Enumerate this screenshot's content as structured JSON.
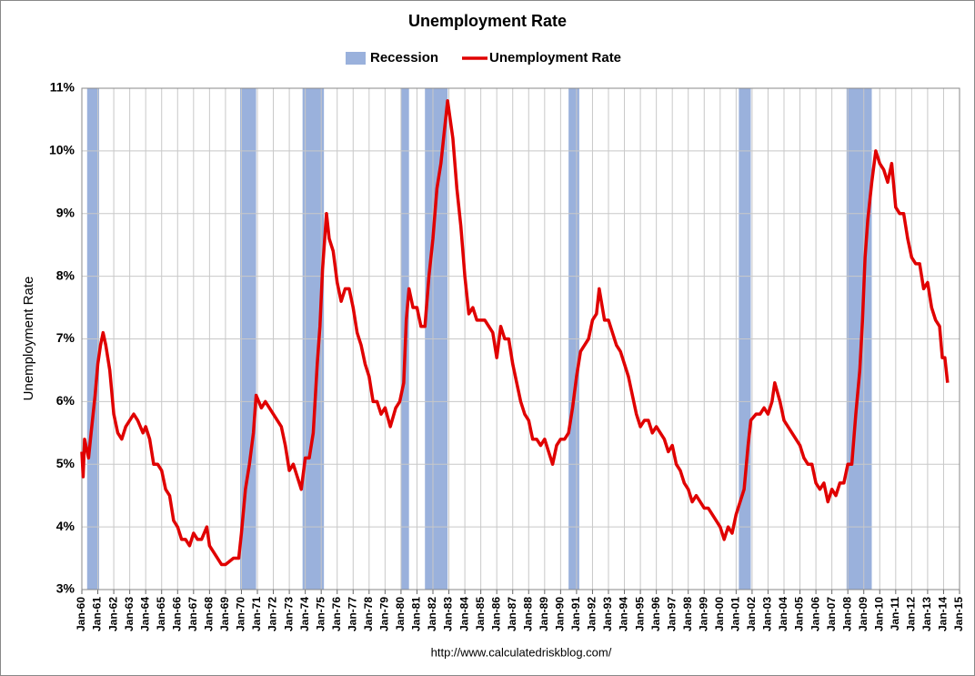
{
  "chart_data": {
    "type": "line",
    "title": "Unemployment Rate",
    "y_label": "Unemployment Rate",
    "source": "http://www.calculatedriskblog.com/",
    "xlim": [
      1960,
      2015
    ],
    "ylim": [
      3,
      11
    ],
    "yticks": [
      {
        "value": 3,
        "label": "3%"
      },
      {
        "value": 4,
        "label": "4%"
      },
      {
        "value": 5,
        "label": "5%"
      },
      {
        "value": 6,
        "label": "6%"
      },
      {
        "value": 7,
        "label": "7%"
      },
      {
        "value": 8,
        "label": "8%"
      },
      {
        "value": 9,
        "label": "9%"
      },
      {
        "value": 10,
        "label": "10%"
      },
      {
        "value": 11,
        "label": "11%"
      }
    ],
    "xticks": [
      {
        "value": 1960,
        "label": "Jan-60"
      },
      {
        "value": 1961,
        "label": "Jan-61"
      },
      {
        "value": 1962,
        "label": "Jan-62"
      },
      {
        "value": 1963,
        "label": "Jan-63"
      },
      {
        "value": 1964,
        "label": "Jan-64"
      },
      {
        "value": 1965,
        "label": "Jan-65"
      },
      {
        "value": 1966,
        "label": "Jan-66"
      },
      {
        "value": 1967,
        "label": "Jan-67"
      },
      {
        "value": 1968,
        "label": "Jan-68"
      },
      {
        "value": 1969,
        "label": "Jan-69"
      },
      {
        "value": 1970,
        "label": "Jan-70"
      },
      {
        "value": 1971,
        "label": "Jan-71"
      },
      {
        "value": 1972,
        "label": "Jan-72"
      },
      {
        "value": 1973,
        "label": "Jan-73"
      },
      {
        "value": 1974,
        "label": "Jan-74"
      },
      {
        "value": 1975,
        "label": "Jan-75"
      },
      {
        "value": 1976,
        "label": "Jan-76"
      },
      {
        "value": 1977,
        "label": "Jan-77"
      },
      {
        "value": 1978,
        "label": "Jan-78"
      },
      {
        "value": 1979,
        "label": "Jan-79"
      },
      {
        "value": 1980,
        "label": "Jan-80"
      },
      {
        "value": 1981,
        "label": "Jan-81"
      },
      {
        "value": 1982,
        "label": "Jan-82"
      },
      {
        "value": 1983,
        "label": "Jan-83"
      },
      {
        "value": 1984,
        "label": "Jan-84"
      },
      {
        "value": 1985,
        "label": "Jan-85"
      },
      {
        "value": 1986,
        "label": "Jan-86"
      },
      {
        "value": 1987,
        "label": "Jan-87"
      },
      {
        "value": 1988,
        "label": "Jan-88"
      },
      {
        "value": 1989,
        "label": "Jan-89"
      },
      {
        "value": 1990,
        "label": "Jan-90"
      },
      {
        "value": 1991,
        "label": "Jan-91"
      },
      {
        "value": 1992,
        "label": "Jan-92"
      },
      {
        "value": 1993,
        "label": "Jan-93"
      },
      {
        "value": 1994,
        "label": "Jan-94"
      },
      {
        "value": 1995,
        "label": "Jan-95"
      },
      {
        "value": 1996,
        "label": "Jan-96"
      },
      {
        "value": 1997,
        "label": "Jan-97"
      },
      {
        "value": 1998,
        "label": "Jan-98"
      },
      {
        "value": 1999,
        "label": "Jan-99"
      },
      {
        "value": 2000,
        "label": "Jan-00"
      },
      {
        "value": 2001,
        "label": "Jan-01"
      },
      {
        "value": 2002,
        "label": "Jan-02"
      },
      {
        "value": 2003,
        "label": "Jan-03"
      },
      {
        "value": 2004,
        "label": "Jan-04"
      },
      {
        "value": 2005,
        "label": "Jan-05"
      },
      {
        "value": 2006,
        "label": "Jan-06"
      },
      {
        "value": 2007,
        "label": "Jan-07"
      },
      {
        "value": 2008,
        "label": "Jan-08"
      },
      {
        "value": 2009,
        "label": "Jan-09"
      },
      {
        "value": 2010,
        "label": "Jan-10"
      },
      {
        "value": 2011,
        "label": "Jan-11"
      },
      {
        "value": 2012,
        "label": "Jan-12"
      },
      {
        "value": 2013,
        "label": "Jan-13"
      },
      {
        "value": 2014,
        "label": "Jan-14"
      },
      {
        "value": 2015,
        "label": "Jan-15"
      }
    ],
    "grid": true,
    "recessions": {
      "name": "Recession",
      "color": "#9ab1dc",
      "periods": [
        [
          1960.33,
          1961.08
        ],
        [
          1969.92,
          1970.92
        ],
        [
          1973.83,
          1975.17
        ],
        [
          1980.0,
          1980.5
        ],
        [
          1981.5,
          1982.92
        ],
        [
          1990.5,
          1991.17
        ],
        [
          2001.17,
          2001.92
        ],
        [
          2007.92,
          2009.5
        ]
      ]
    },
    "series": [
      {
        "name": "Unemployment Rate",
        "color": "#e00000",
        "x": [
          1960.0,
          1960.08,
          1960.17,
          1960.42,
          1960.58,
          1960.83,
          1961.0,
          1961.17,
          1961.33,
          1961.5,
          1961.75,
          1962.0,
          1962.25,
          1962.5,
          1962.75,
          1963.0,
          1963.25,
          1963.5,
          1963.83,
          1964.0,
          1964.25,
          1964.5,
          1964.75,
          1965.0,
          1965.25,
          1965.5,
          1965.75,
          1966.0,
          1966.25,
          1966.5,
          1966.75,
          1967.0,
          1967.25,
          1967.5,
          1967.83,
          1968.0,
          1968.25,
          1968.5,
          1968.75,
          1969.0,
          1969.5,
          1969.83,
          1970.0,
          1970.25,
          1970.5,
          1970.75,
          1970.92,
          1971.25,
          1971.5,
          1971.75,
          1972.0,
          1972.25,
          1972.5,
          1972.75,
          1973.0,
          1973.25,
          1973.5,
          1973.75,
          1974.0,
          1974.25,
          1974.5,
          1974.75,
          1974.92,
          1975.08,
          1975.33,
          1975.5,
          1975.75,
          1976.0,
          1976.25,
          1976.5,
          1976.75,
          1977.0,
          1977.25,
          1977.5,
          1977.75,
          1978.0,
          1978.25,
          1978.5,
          1978.75,
          1979.0,
          1979.33,
          1979.67,
          1979.92,
          1980.17,
          1980.33,
          1980.5,
          1980.75,
          1981.0,
          1981.25,
          1981.5,
          1981.75,
          1982.0,
          1982.25,
          1982.5,
          1982.75,
          1982.92,
          1983.25,
          1983.5,
          1983.75,
          1984.0,
          1984.25,
          1984.5,
          1984.75,
          1985.0,
          1985.25,
          1985.5,
          1985.75,
          1986.0,
          1986.25,
          1986.5,
          1986.75,
          1987.0,
          1987.25,
          1987.5,
          1987.75,
          1988.0,
          1988.25,
          1988.5,
          1988.75,
          1989.0,
          1989.25,
          1989.5,
          1989.75,
          1990.0,
          1990.25,
          1990.5,
          1990.75,
          1991.0,
          1991.25,
          1991.5,
          1991.75,
          1992.0,
          1992.25,
          1992.42,
          1992.75,
          1993.0,
          1993.25,
          1993.5,
          1993.75,
          1994.0,
          1994.25,
          1994.5,
          1994.75,
          1995.0,
          1995.25,
          1995.5,
          1995.75,
          1996.0,
          1996.25,
          1996.5,
          1996.75,
          1997.0,
          1997.25,
          1997.5,
          1997.75,
          1998.0,
          1998.25,
          1998.5,
          1998.75,
          1999.0,
          1999.25,
          1999.5,
          1999.75,
          2000.0,
          2000.25,
          2000.5,
          2000.75,
          2001.0,
          2001.25,
          2001.5,
          2001.75,
          2001.92,
          2002.25,
          2002.5,
          2002.75,
          2003.0,
          2003.25,
          2003.42,
          2003.75,
          2004.0,
          2004.25,
          2004.5,
          2004.75,
          2005.0,
          2005.25,
          2005.5,
          2005.75,
          2006.0,
          2006.25,
          2006.5,
          2006.75,
          2007.0,
          2007.25,
          2007.5,
          2007.75,
          2008.0,
          2008.25,
          2008.5,
          2008.75,
          2008.92,
          2009.08,
          2009.25,
          2009.5,
          2009.75,
          2010.0,
          2010.25,
          2010.5,
          2010.75,
          2011.0,
          2011.25,
          2011.5,
          2011.75,
          2012.0,
          2012.25,
          2012.5,
          2012.75,
          2013.0,
          2013.25,
          2013.5,
          2013.75,
          2013.92,
          2014.08,
          2014.25
        ],
        "values": [
          5.2,
          4.8,
          5.4,
          5.1,
          5.5,
          6.1,
          6.6,
          6.9,
          7.1,
          6.9,
          6.5,
          5.8,
          5.5,
          5.4,
          5.6,
          5.7,
          5.8,
          5.7,
          5.5,
          5.6,
          5.4,
          5.0,
          5.0,
          4.9,
          4.6,
          4.5,
          4.1,
          4.0,
          3.8,
          3.8,
          3.7,
          3.9,
          3.8,
          3.8,
          4.0,
          3.7,
          3.6,
          3.5,
          3.4,
          3.4,
          3.5,
          3.5,
          3.9,
          4.6,
          5.0,
          5.5,
          6.1,
          5.9,
          6.0,
          5.9,
          5.8,
          5.7,
          5.6,
          5.3,
          4.9,
          5.0,
          4.8,
          4.6,
          5.1,
          5.1,
          5.5,
          6.6,
          7.2,
          8.1,
          9.0,
          8.6,
          8.4,
          7.9,
          7.6,
          7.8,
          7.8,
          7.5,
          7.1,
          6.9,
          6.6,
          6.4,
          6.0,
          6.0,
          5.8,
          5.9,
          5.6,
          5.9,
          6.0,
          6.3,
          7.3,
          7.8,
          7.5,
          7.5,
          7.2,
          7.2,
          8.0,
          8.6,
          9.4,
          9.8,
          10.4,
          10.8,
          10.2,
          9.4,
          8.8,
          8.0,
          7.4,
          7.5,
          7.3,
          7.3,
          7.3,
          7.2,
          7.1,
          6.7,
          7.2,
          7.0,
          7.0,
          6.6,
          6.3,
          6.0,
          5.8,
          5.7,
          5.4,
          5.4,
          5.3,
          5.4,
          5.2,
          5.0,
          5.3,
          5.4,
          5.4,
          5.5,
          5.9,
          6.4,
          6.8,
          6.9,
          7.0,
          7.3,
          7.4,
          7.8,
          7.3,
          7.3,
          7.1,
          6.9,
          6.8,
          6.6,
          6.4,
          6.1,
          5.8,
          5.6,
          5.7,
          5.7,
          5.5,
          5.6,
          5.5,
          5.4,
          5.2,
          5.3,
          5.0,
          4.9,
          4.7,
          4.6,
          4.4,
          4.5,
          4.4,
          4.3,
          4.3,
          4.2,
          4.1,
          4.0,
          3.8,
          4.0,
          3.9,
          4.2,
          4.4,
          4.6,
          5.3,
          5.7,
          5.8,
          5.8,
          5.9,
          5.8,
          6.0,
          6.3,
          6.0,
          5.7,
          5.6,
          5.5,
          5.4,
          5.3,
          5.1,
          5.0,
          5.0,
          4.7,
          4.6,
          4.7,
          4.4,
          4.6,
          4.5,
          4.7,
          4.7,
          5.0,
          5.0,
          5.8,
          6.5,
          7.3,
          8.3,
          8.9,
          9.5,
          10.0,
          9.8,
          9.7,
          9.5,
          9.8,
          9.1,
          9.0,
          9.0,
          8.6,
          8.3,
          8.2,
          8.2,
          7.8,
          7.9,
          7.5,
          7.3,
          7.2,
          6.7,
          6.7,
          6.3
        ]
      }
    ]
  }
}
